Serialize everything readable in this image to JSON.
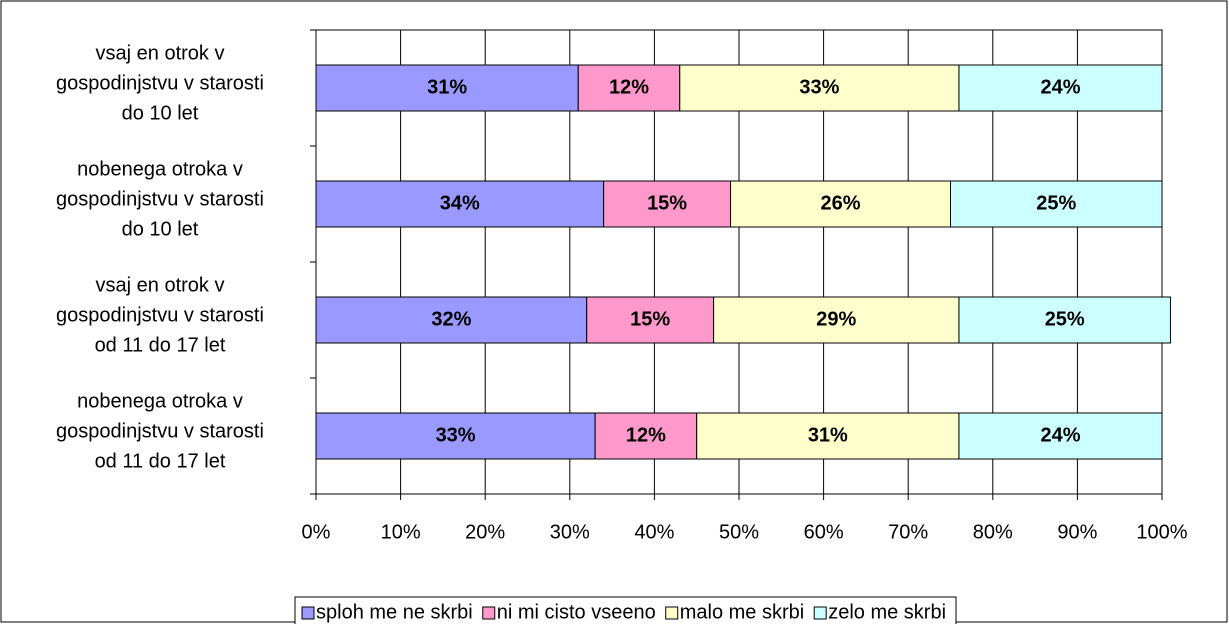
{
  "chart_data": {
    "type": "stacked_bar_horizontal",
    "categories": [
      [
        "vsaj en otrok v",
        "gospodinjstvu v starosti",
        "do 10 let"
      ],
      [
        "nobenega otroka v",
        "gospodinjstvu v starosti",
        "do 10 let"
      ],
      [
        "vsaj en otrok v",
        "gospodinjstvu v starosti",
        "od 11 do 17 let"
      ],
      [
        "nobenega otroka v",
        "gospodinjstvu v starosti",
        "od 11 do 17 let"
      ]
    ],
    "series": [
      {
        "name": "sploh me ne skrbi",
        "color": "#9999ff",
        "values": [
          31,
          34,
          32,
          33
        ],
        "value_labels": [
          "31%",
          "34%",
          "32%",
          "33%"
        ]
      },
      {
        "name": "ni mi cisto vseeno",
        "color": "#ff99cc",
        "values": [
          12,
          15,
          15,
          12
        ],
        "value_labels": [
          "12%",
          "15%",
          "15%",
          "12%"
        ]
      },
      {
        "name": "malo me skrbi",
        "color": "#ffffcc",
        "values": [
          33,
          26,
          29,
          31
        ],
        "value_labels": [
          "33%",
          "26%",
          "29%",
          "31%"
        ]
      },
      {
        "name": "zelo me skrbi",
        "color": "#ccffff",
        "values": [
          24,
          25,
          25,
          24
        ],
        "value_labels": [
          "24%",
          "25%",
          "25%",
          "24%"
        ]
      }
    ],
    "xlim": [
      0,
      100
    ],
    "xticks": [
      {
        "value": 0,
        "label": "0%"
      },
      {
        "value": 10,
        "label": "10%"
      },
      {
        "value": 20,
        "label": "20%"
      },
      {
        "value": 30,
        "label": "30%"
      },
      {
        "value": 40,
        "label": "40%"
      },
      {
        "value": 50,
        "label": "50%"
      },
      {
        "value": 60,
        "label": "60%"
      },
      {
        "value": 70,
        "label": "70%"
      },
      {
        "value": 80,
        "label": "80%"
      },
      {
        "value": 90,
        "label": "90%"
      },
      {
        "value": 100,
        "label": "100%"
      }
    ],
    "grid": true,
    "legend": "bottom"
  }
}
